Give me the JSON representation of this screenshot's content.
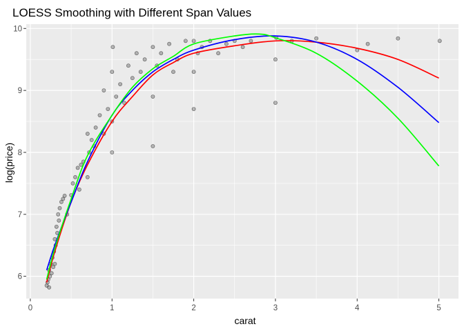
{
  "chart_data": {
    "type": "scatter",
    "title": "LOESS Smoothing with Different Span Values",
    "xlabel": "carat",
    "ylabel": "log(price)",
    "xlim": [
      -0.05,
      5.24
    ],
    "ylim": [
      5.64,
      10.07
    ],
    "x_ticks": [
      0,
      1,
      2,
      3,
      4,
      5
    ],
    "y_ticks": [
      6,
      7,
      8,
      9,
      10
    ],
    "x_tick_labels": [
      "0",
      "1",
      "2",
      "3",
      "4",
      "5"
    ],
    "y_tick_labels": [
      "6",
      "7",
      "8",
      "9",
      "10"
    ],
    "grid": true,
    "legend": "none",
    "colors": {
      "panel_background": "#ebebeb",
      "grid": "#ffffff",
      "points": "#000000",
      "series_red": "#ff0000",
      "series_blue": "#0000ff",
      "series_green": "#00ff00"
    },
    "scatter_points": [
      [
        0.2,
        5.85
      ],
      [
        0.21,
        5.9
      ],
      [
        0.22,
        5.95
      ],
      [
        0.23,
        5.82
      ],
      [
        0.23,
        6.1
      ],
      [
        0.24,
        6.0
      ],
      [
        0.25,
        6.2
      ],
      [
        0.26,
        6.05
      ],
      [
        0.27,
        6.3
      ],
      [
        0.28,
        6.15
      ],
      [
        0.29,
        6.4
      ],
      [
        0.3,
        6.2
      ],
      [
        0.3,
        6.6
      ],
      [
        0.31,
        6.5
      ],
      [
        0.32,
        6.8
      ],
      [
        0.33,
        6.7
      ],
      [
        0.34,
        7.0
      ],
      [
        0.35,
        6.9
      ],
      [
        0.36,
        7.1
      ],
      [
        0.38,
        7.2
      ],
      [
        0.4,
        7.25
      ],
      [
        0.42,
        7.3
      ],
      [
        0.45,
        7.0
      ],
      [
        0.5,
        7.31
      ],
      [
        0.52,
        7.5
      ],
      [
        0.55,
        7.6
      ],
      [
        0.58,
        7.75
      ],
      [
        0.6,
        7.4
      ],
      [
        0.62,
        7.8
      ],
      [
        0.65,
        7.85
      ],
      [
        0.7,
        7.6
      ],
      [
        0.7,
        8.3
      ],
      [
        0.72,
        8.0
      ],
      [
        0.75,
        8.2
      ],
      [
        0.78,
        8.1
      ],
      [
        0.8,
        8.4
      ],
      [
        0.85,
        8.6
      ],
      [
        0.9,
        8.3
      ],
      [
        0.9,
        9.0
      ],
      [
        0.95,
        8.7
      ],
      [
        1.0,
        8.0
      ],
      [
        1.0,
        8.5
      ],
      [
        1.0,
        9.3
      ],
      [
        1.01,
        9.7
      ],
      [
        1.05,
        8.9
      ],
      [
        1.1,
        9.1
      ],
      [
        1.15,
        8.8
      ],
      [
        1.2,
        9.4
      ],
      [
        1.25,
        9.2
      ],
      [
        1.3,
        9.6
      ],
      [
        1.35,
        9.3
      ],
      [
        1.4,
        9.5
      ],
      [
        1.5,
        8.1
      ],
      [
        1.5,
        8.9
      ],
      [
        1.5,
        9.7
      ],
      [
        1.55,
        9.4
      ],
      [
        1.6,
        9.6
      ],
      [
        1.7,
        9.75
      ],
      [
        1.75,
        9.3
      ],
      [
        1.8,
        9.5
      ],
      [
        1.9,
        9.8
      ],
      [
        2.0,
        8.7
      ],
      [
        2.0,
        9.3
      ],
      [
        2.0,
        9.8
      ],
      [
        2.05,
        9.6
      ],
      [
        2.1,
        9.7
      ],
      [
        2.2,
        9.8
      ],
      [
        2.3,
        9.6
      ],
      [
        2.4,
        9.75
      ],
      [
        2.5,
        9.8
      ],
      [
        2.6,
        9.7
      ],
      [
        2.7,
        9.8
      ],
      [
        3.0,
        8.8
      ],
      [
        3.0,
        9.5
      ],
      [
        3.01,
        9.85
      ],
      [
        3.2,
        9.8
      ],
      [
        3.5,
        9.84
      ],
      [
        4.0,
        9.65
      ],
      [
        4.13,
        9.75
      ],
      [
        4.5,
        9.84
      ],
      [
        5.01,
        9.8
      ]
    ],
    "series": [
      {
        "color": "#ff0000",
        "x": [
          0.2,
          0.3,
          0.5,
          0.7,
          1.0,
          1.25,
          1.5,
          1.75,
          2.0,
          2.5,
          3.0,
          3.5,
          4.0,
          4.5,
          5.0
        ],
        "y": [
          5.9,
          6.4,
          7.2,
          7.8,
          8.5,
          8.9,
          9.25,
          9.45,
          9.6,
          9.72,
          9.8,
          9.78,
          9.68,
          9.5,
          9.2
        ]
      },
      {
        "color": "#0000ff",
        "x": [
          0.2,
          0.3,
          0.5,
          0.7,
          1.0,
          1.25,
          1.5,
          1.75,
          2.0,
          2.5,
          3.0,
          3.5,
          4.0,
          4.5,
          5.0
        ],
        "y": [
          6.1,
          6.5,
          7.2,
          7.85,
          8.6,
          9.0,
          9.3,
          9.5,
          9.65,
          9.82,
          9.88,
          9.78,
          9.5,
          9.05,
          8.48
        ]
      },
      {
        "color": "#00ff00",
        "x": [
          0.2,
          0.3,
          0.5,
          0.7,
          1.0,
          1.25,
          1.5,
          1.75,
          2.0,
          2.5,
          2.8,
          3.0,
          3.5,
          4.0,
          4.5,
          5.0
        ],
        "y": [
          5.95,
          6.45,
          7.25,
          7.95,
          8.6,
          9.05,
          9.35,
          9.55,
          9.75,
          9.88,
          9.91,
          9.85,
          9.6,
          9.15,
          8.55,
          7.78
        ]
      }
    ]
  }
}
